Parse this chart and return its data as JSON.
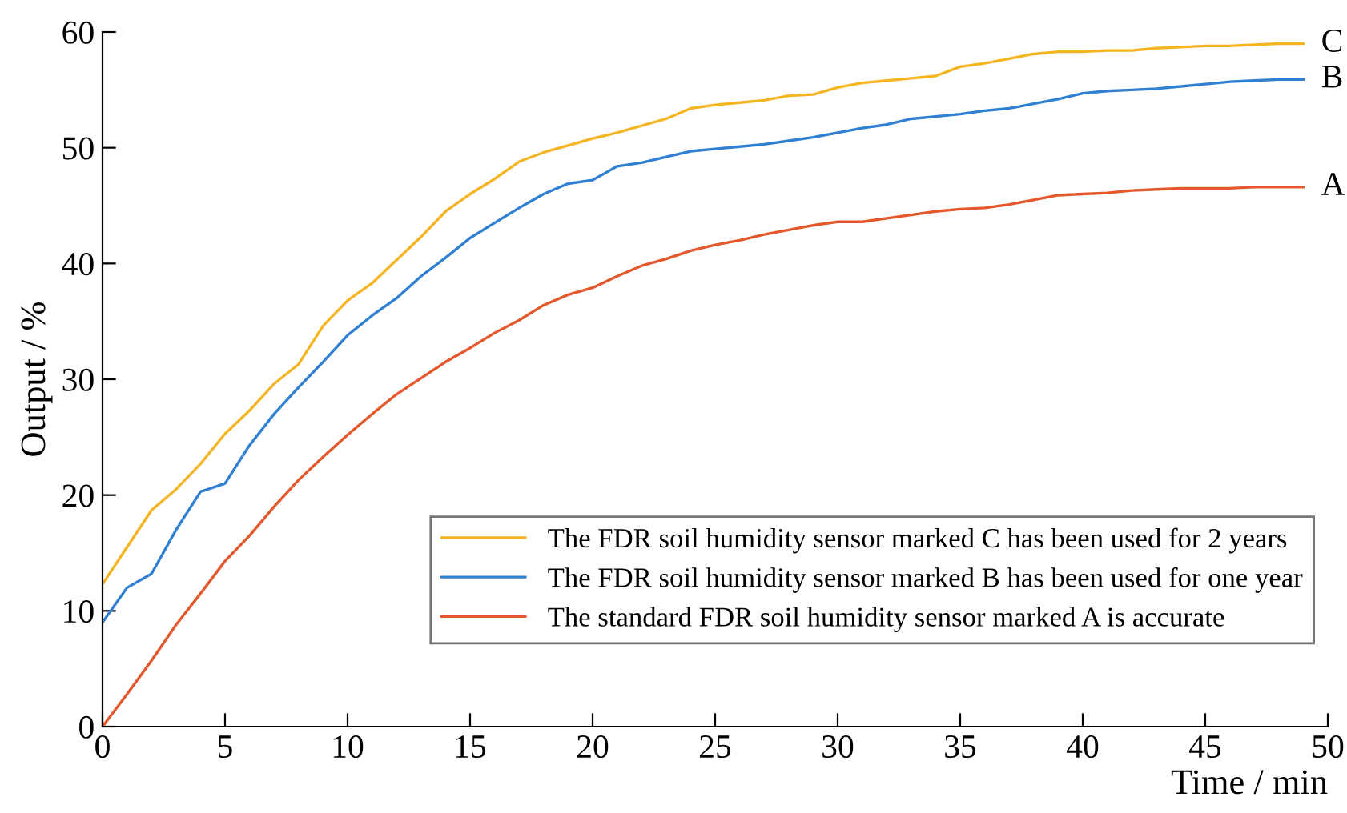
{
  "chart_data": {
    "type": "line",
    "xlabel": "Time / min",
    "ylabel": "Output / %",
    "x": [
      0,
      1,
      2,
      3,
      4,
      5,
      6,
      7,
      8,
      9,
      10,
      11,
      12,
      13,
      14,
      15,
      16,
      17,
      18,
      19,
      20,
      21,
      22,
      23,
      24,
      25,
      26,
      27,
      28,
      29,
      30,
      31,
      32,
      33,
      34,
      35,
      36,
      37,
      38,
      39,
      40,
      41,
      42,
      43,
      44,
      45,
      46,
      47,
      48,
      49
    ],
    "series": [
      {
        "name": "The FDR soil humidity sensor marked C has been used for 2 years",
        "color": "#f5b523",
        "values": [
          12.3,
          15.5,
          18.7,
          20.5,
          22.7,
          25.3,
          27.3,
          29.6,
          31.3,
          34.6,
          36.8,
          38.3,
          40.3,
          42.3,
          44.5,
          46.0,
          47.3,
          48.8,
          49.6,
          50.2,
          50.8,
          51.3,
          51.9,
          52.5,
          53.4,
          53.7,
          53.9,
          54.1,
          54.5,
          54.6,
          55.2,
          55.6,
          55.8,
          56.0,
          56.2,
          57.0,
          57.3,
          57.7,
          58.1,
          58.3,
          58.3,
          58.4,
          58.4,
          58.6,
          58.7,
          58.8,
          58.8,
          58.9,
          59.0,
          59.0
        ]
      },
      {
        "name": "The FDR soil humidity sensor marked B has been used for one year",
        "color": "#2f7fd3",
        "values": [
          9.0,
          12.0,
          13.2,
          17.0,
          20.3,
          21.0,
          24.3,
          27.0,
          29.3,
          31.5,
          33.8,
          35.5,
          37.0,
          38.9,
          40.5,
          42.2,
          43.5,
          44.8,
          46.0,
          46.9,
          47.2,
          48.4,
          48.7,
          49.2,
          49.7,
          49.9,
          50.1,
          50.3,
          50.6,
          50.9,
          51.3,
          51.7,
          52.0,
          52.5,
          52.7,
          52.9,
          53.2,
          53.4,
          53.8,
          54.2,
          54.7,
          54.9,
          55.0,
          55.1,
          55.3,
          55.5,
          55.7,
          55.8,
          55.9,
          55.9
        ]
      },
      {
        "name": "The standard FDR soil humidity sensor marked A is accurate",
        "color": "#e4582c",
        "values": [
          0.0,
          2.8,
          5.7,
          8.8,
          11.5,
          14.3,
          16.5,
          19.0,
          21.3,
          23.3,
          25.2,
          27.0,
          28.7,
          30.1,
          31.5,
          32.7,
          34.0,
          35.1,
          36.4,
          37.3,
          37.9,
          38.9,
          39.8,
          40.4,
          41.1,
          41.6,
          42.0,
          42.5,
          42.9,
          43.3,
          43.6,
          43.6,
          43.9,
          44.2,
          44.5,
          44.7,
          44.8,
          45.1,
          45.5,
          45.9,
          46.0,
          46.1,
          46.3,
          46.4,
          46.5,
          46.5,
          46.5,
          46.6,
          46.6,
          46.6
        ]
      }
    ],
    "annotations": [
      "C",
      "B",
      "A"
    ],
    "xlim": [
      0,
      50
    ],
    "xticks": [
      0,
      5,
      10,
      15,
      20,
      25,
      30,
      35,
      40,
      45,
      50
    ],
    "ylim": [
      0,
      60
    ],
    "yticks": [
      0,
      10,
      20,
      30,
      40,
      50,
      60
    ],
    "grid": false,
    "legend": "lower right",
    "line_style": "solid",
    "marker": "none"
  }
}
